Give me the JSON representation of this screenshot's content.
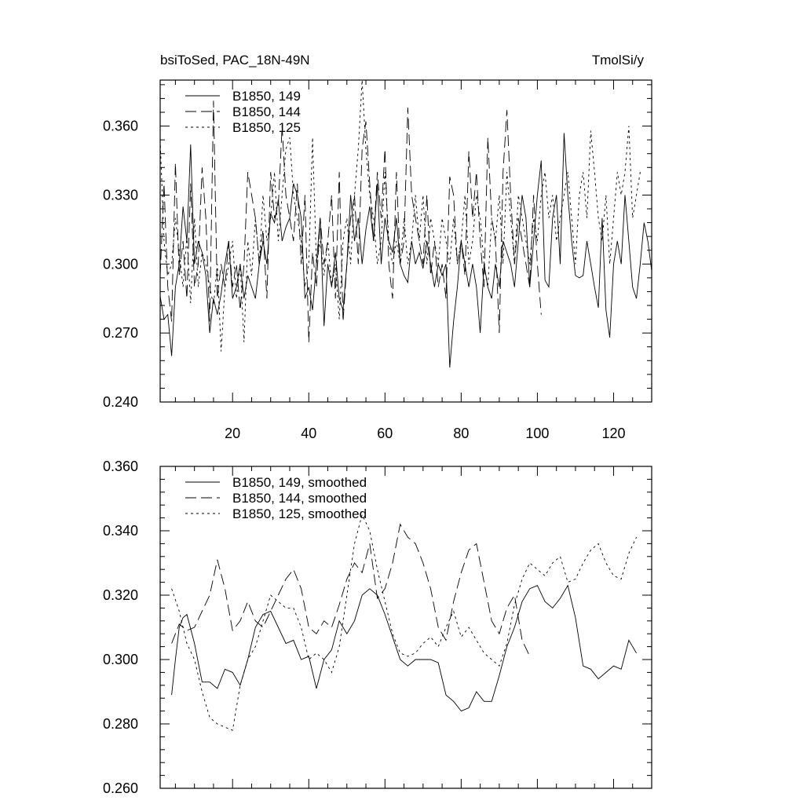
{
  "chart_data": [
    {
      "type": "line",
      "title": "bsiToSed, PAC_18N-49N",
      "units": "TmolSi/y",
      "xlim": [
        1,
        130
      ],
      "ylim": [
        0.24,
        0.38
      ],
      "xticks": [
        20,
        40,
        60,
        80,
        100,
        120
      ],
      "xtick_labels": [
        "20",
        "40",
        "60",
        "80",
        "100",
        "120"
      ],
      "yticks": [
        0.24,
        0.27,
        0.3,
        0.33,
        0.36
      ],
      "ytick_labels": [
        "0.240",
        "0.270",
        "0.300",
        "0.330",
        "0.360"
      ],
      "legend": "top-left",
      "series": [
        {
          "name": "B1850, 149",
          "style": "solid",
          "x_start": 1,
          "values": [
            0.286,
            0.276,
            0.278,
            0.26,
            0.29,
            0.3,
            0.325,
            0.31,
            0.352,
            0.3,
            0.31,
            0.305,
            0.295,
            0.27,
            0.285,
            0.278,
            0.287,
            0.3,
            0.31,
            0.285,
            0.29,
            0.3,
            0.285,
            0.295,
            0.29,
            0.285,
            0.3,
            0.31,
            0.3,
            0.322,
            0.318,
            0.328,
            0.31,
            0.316,
            0.32,
            0.335,
            0.33,
            0.32,
            0.285,
            0.29,
            0.28,
            0.3,
            0.32,
            0.273,
            0.3,
            0.29,
            0.305,
            0.285,
            0.28,
            0.3,
            0.33,
            0.31,
            0.32,
            0.3,
            0.315,
            0.325,
            0.31,
            0.335,
            0.3,
            0.32,
            0.31,
            0.305,
            0.32,
            0.3,
            0.295,
            0.292,
            0.31,
            0.3,
            0.305,
            0.298,
            0.31,
            0.3,
            0.29,
            0.3,
            0.295,
            0.3,
            0.255,
            0.275,
            0.29,
            0.31,
            0.3,
            0.29,
            0.3,
            0.29,
            0.27,
            0.3,
            0.29,
            0.285,
            0.3,
            0.29,
            0.31,
            0.305,
            0.3,
            0.29,
            0.31,
            0.33,
            0.32,
            0.29,
            0.31,
            0.33,
            0.345,
            0.293,
            0.29,
            0.32,
            0.33,
            0.3,
            0.357,
            0.33,
            0.31,
            0.295,
            0.294,
            0.295,
            0.31,
            0.3,
            0.29,
            0.281,
            0.32,
            0.28,
            0.268,
            0.3,
            0.31,
            0.3,
            0.33,
            0.31,
            0.29,
            0.285,
            0.3,
            0.318,
            0.31,
            0.297
          ]
        },
        {
          "name": "B1850, 144",
          "style": "dashed",
          "x_start": 1,
          "values": [
            0.295,
            0.335,
            0.29,
            0.275,
            0.344,
            0.295,
            0.31,
            0.285,
            0.335,
            0.29,
            0.3,
            0.342,
            0.32,
            0.275,
            0.371,
            0.285,
            0.3,
            0.29,
            0.31,
            0.29,
            0.3,
            0.28,
            0.3,
            0.34,
            0.33,
            0.32,
            0.3,
            0.315,
            0.285,
            0.34,
            0.32,
            0.325,
            0.36,
            0.33,
            0.32,
            0.31,
            0.335,
            0.3,
            0.33,
            0.266,
            0.305,
            0.29,
            0.32,
            0.3,
            0.31,
            0.33,
            0.285,
            0.34,
            0.275,
            0.3,
            0.32,
            0.33,
            0.3,
            0.35,
            0.362,
            0.335,
            0.31,
            0.34,
            0.32,
            0.35,
            0.3,
            0.285,
            0.34,
            0.3,
            0.31,
            0.368,
            0.33,
            0.32,
            0.31,
            0.3,
            0.33,
            0.295,
            0.31,
            0.29,
            0.3,
            0.285,
            0.338,
            0.33,
            0.3,
            0.31,
            0.295,
            0.349,
            0.32,
            0.34,
            0.31,
            0.29,
            0.355,
            0.32,
            0.31,
            0.27,
            0.34,
            0.367,
            0.33,
            0.3,
            0.32,
            0.31,
            0.3,
            0.29,
            0.33,
            0.3,
            0.278
          ]
        },
        {
          "name": "B1850, 125",
          "style": "dotted",
          "x_start": 1,
          "values": [
            0.354,
            0.31,
            0.295,
            0.3,
            0.32,
            0.305,
            0.29,
            0.312,
            0.283,
            0.32,
            0.29,
            0.305,
            0.3,
            0.29,
            0.282,
            0.3,
            0.262,
            0.29,
            0.3,
            0.31,
            0.285,
            0.3,
            0.266,
            0.31,
            0.295,
            0.32,
            0.3,
            0.33,
            0.31,
            0.32,
            0.34,
            0.31,
            0.33,
            0.35,
            0.355,
            0.33,
            0.32,
            0.31,
            0.29,
            0.3,
            0.355,
            0.3,
            0.31,
            0.295,
            0.31,
            0.29,
            0.3,
            0.276,
            0.31,
            0.32,
            0.3,
            0.33,
            0.35,
            0.38,
            0.35,
            0.33,
            0.32,
            0.3,
            0.31,
            0.34,
            0.31,
            0.3,
            0.31,
            0.3,
            0.32,
            0.3,
            0.31,
            0.33,
            0.31,
            0.33,
            0.3,
            0.32,
            0.31,
            0.3,
            0.32,
            0.31,
            0.3,
            0.32,
            0.3,
            0.31,
            0.33,
            0.3,
            0.31,
            0.33,
            0.32,
            0.3,
            0.29,
            0.32,
            0.31,
            0.33,
            0.3,
            0.34,
            0.32,
            0.3,
            0.33,
            0.32,
            0.31,
            0.3,
            0.32,
            0.31,
            0.33,
            0.34,
            0.32,
            0.33,
            0.31,
            0.32,
            0.33,
            0.34,
            0.32,
            0.3,
            0.33,
            0.34,
            0.32,
            0.358,
            0.34,
            0.32,
            0.31,
            0.33,
            0.3,
            0.32,
            0.34,
            0.33,
            0.34,
            0.36,
            0.32,
            0.33,
            0.34
          ]
        }
      ]
    },
    {
      "type": "line",
      "xlim": [
        1,
        130
      ],
      "ylim": [
        0.26,
        0.36
      ],
      "xticks": [
        20,
        40,
        60,
        80,
        100,
        120
      ],
      "yticks": [
        0.26,
        0.28,
        0.3,
        0.32,
        0.34,
        0.36
      ],
      "ytick_labels": [
        "0.260",
        "0.280",
        "0.300",
        "0.320",
        "0.340",
        "0.360"
      ],
      "legend": "top-left",
      "series": [
        {
          "name": "B1850, 149, smoothed",
          "style": "solid",
          "x": [
            4,
            5,
            6,
            7,
            8,
            10,
            12,
            14,
            16,
            18,
            20,
            22,
            24,
            26,
            28,
            30,
            32,
            34,
            36,
            38,
            40,
            42,
            44,
            46,
            48,
            50,
            52,
            54,
            56,
            58,
            60,
            62,
            64,
            66,
            68,
            70,
            72,
            74,
            76,
            78,
            80,
            82,
            84,
            86,
            88,
            90,
            92,
            94,
            96,
            98,
            100,
            102,
            104,
            106,
            108,
            110,
            112,
            114,
            116,
            118,
            120,
            122,
            124,
            126
          ],
          "values": [
            0.289,
            0.3,
            0.31,
            0.313,
            0.314,
            0.305,
            0.293,
            0.293,
            0.291,
            0.297,
            0.296,
            0.292,
            0.3,
            0.31,
            0.314,
            0.315,
            0.31,
            0.305,
            0.306,
            0.3,
            0.301,
            0.291,
            0.3,
            0.303,
            0.312,
            0.308,
            0.312,
            0.32,
            0.322,
            0.32,
            0.314,
            0.307,
            0.3,
            0.298,
            0.3,
            0.3,
            0.3,
            0.299,
            0.289,
            0.287,
            0.284,
            0.285,
            0.29,
            0.287,
            0.287,
            0.295,
            0.304,
            0.31,
            0.318,
            0.322,
            0.323,
            0.318,
            0.316,
            0.319,
            0.323,
            0.313,
            0.298,
            0.297,
            0.294,
            0.296,
            0.298,
            0.297,
            0.306,
            0.302
          ]
        },
        {
          "name": "B1850, 144, smoothed",
          "style": "dashed",
          "x": [
            4,
            6,
            8,
            10,
            12,
            14,
            16,
            18,
            20,
            22,
            24,
            26,
            28,
            30,
            32,
            34,
            36,
            38,
            40,
            42,
            44,
            46,
            48,
            50,
            52,
            54,
            56,
            58,
            60,
            62,
            64,
            66,
            68,
            70,
            72,
            74,
            76,
            78,
            80,
            82,
            84,
            86,
            88,
            90,
            92,
            94,
            96,
            98
          ],
          "values": [
            0.305,
            0.311,
            0.309,
            0.31,
            0.315,
            0.32,
            0.331,
            0.322,
            0.309,
            0.312,
            0.318,
            0.312,
            0.31,
            0.315,
            0.32,
            0.325,
            0.328,
            0.322,
            0.31,
            0.308,
            0.312,
            0.31,
            0.317,
            0.325,
            0.33,
            0.327,
            0.336,
            0.319,
            0.322,
            0.33,
            0.342,
            0.338,
            0.336,
            0.33,
            0.322,
            0.31,
            0.306,
            0.318,
            0.327,
            0.334,
            0.336,
            0.324,
            0.312,
            0.308,
            0.316,
            0.32,
            0.306,
            0.301
          ]
        },
        {
          "name": "B1850, 125, smoothed",
          "style": "dotted",
          "x": [
            4,
            6,
            8,
            10,
            12,
            14,
            16,
            18,
            20,
            22,
            24,
            26,
            28,
            30,
            32,
            34,
            36,
            38,
            40,
            42,
            44,
            46,
            48,
            50,
            52,
            54,
            56,
            58,
            60,
            62,
            64,
            66,
            68,
            70,
            72,
            74,
            76,
            78,
            80,
            82,
            84,
            86,
            88,
            90,
            92,
            94,
            96,
            98,
            100,
            102,
            104,
            106,
            108,
            110,
            112,
            114,
            116,
            118,
            120,
            122,
            124,
            126
          ],
          "values": [
            0.322,
            0.315,
            0.305,
            0.3,
            0.29,
            0.282,
            0.28,
            0.279,
            0.278,
            0.292,
            0.3,
            0.304,
            0.312,
            0.32,
            0.318,
            0.316,
            0.316,
            0.31,
            0.3,
            0.302,
            0.3,
            0.296,
            0.304,
            0.32,
            0.336,
            0.345,
            0.34,
            0.328,
            0.318,
            0.308,
            0.302,
            0.301,
            0.302,
            0.305,
            0.307,
            0.304,
            0.31,
            0.315,
            0.307,
            0.31,
            0.306,
            0.302,
            0.3,
            0.298,
            0.305,
            0.317,
            0.325,
            0.33,
            0.328,
            0.326,
            0.33,
            0.332,
            0.324,
            0.325,
            0.33,
            0.334,
            0.336,
            0.33,
            0.326,
            0.325,
            0.333,
            0.338
          ]
        }
      ]
    }
  ]
}
